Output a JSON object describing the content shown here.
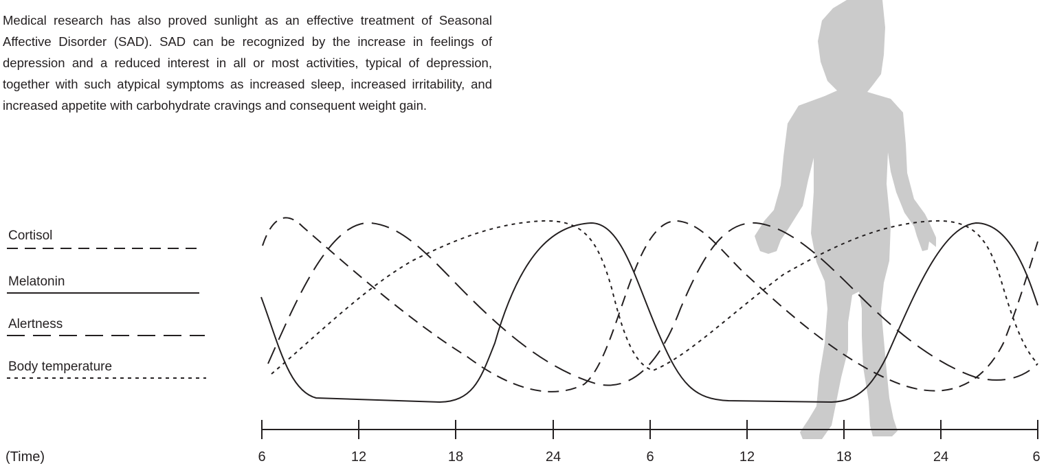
{
  "paragraph": "Medical research has also proved sunlight as an effective treatment of Seasonal Affective Disorder (SAD). SAD can be recognized by the increase in feelings of depression and a reduced interest in all or most activities, typical of depression, together with such atypical symptoms as increased sleep, increased irritability, and increased appetite with carbohydrate cravings and consequent weight gain.",
  "colors": {
    "ink": "#231f20",
    "silhouette": "#cbcbcb"
  },
  "icons": {
    "figure": "human-silhouette-icon"
  },
  "legend": [
    {
      "label": "Cortisol",
      "dash": "medium-dash"
    },
    {
      "label": "Melatonin",
      "dash": "solid"
    },
    {
      "label": "Alertness",
      "dash": "long-dash"
    },
    {
      "label": "Body temperature",
      "dash": "short-dash"
    }
  ],
  "axis": {
    "label": "(Time)",
    "ticks": [
      "6",
      "12",
      "18",
      "24",
      "6",
      "12",
      "18",
      "24",
      "6"
    ]
  }
}
